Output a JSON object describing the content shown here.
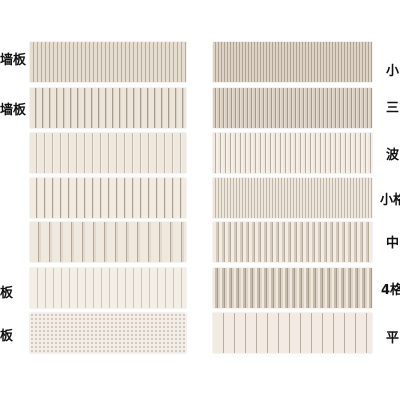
{
  "left_labels": [
    "墙板",
    "墙板",
    "板",
    "板"
  ],
  "right_labels": [
    "小",
    "三",
    "波",
    "小格",
    "中",
    "4格",
    "平"
  ]
}
